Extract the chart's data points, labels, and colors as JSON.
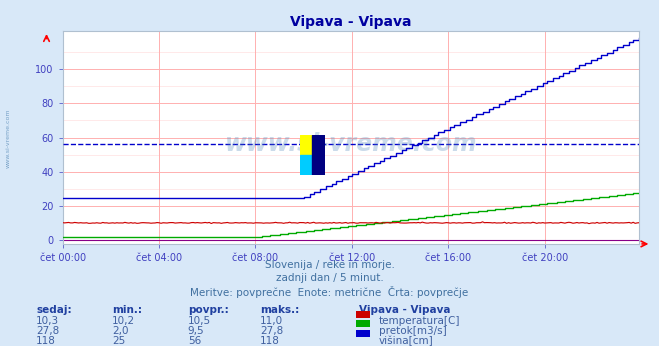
{
  "title": "Vipava - Vipava",
  "bg_color": "#d8e8f8",
  "plot_bg_color": "#ffffff",
  "grid_color": "#ffb0b0",
  "grid_minor_color": "#ffe0e0",
  "tick_color": "#4040c0",
  "title_color": "#0000a0",
  "watermark": "www.si-vreme.com",
  "subtitle_lines": [
    "Slovenija / reke in morje.",
    "zadnji dan / 5 minut.",
    "Meritve: povprečne  Enote: metrične  Črta: povprečje"
  ],
  "legend_title": "Vipava - Vipava",
  "legend_items": [
    {
      "label": "temperatura[C]",
      "color": "#cc0000"
    },
    {
      "label": "pretok[m3/s]",
      "color": "#00aa00"
    },
    {
      "label": "višina[cm]",
      "color": "#0000cc"
    }
  ],
  "table_headers": [
    "sedaj:",
    "min.:",
    "povpr.:",
    "maks.:"
  ],
  "table_rows": [
    [
      "10,3",
      "10,2",
      "10,5",
      "11,0"
    ],
    [
      "27,8",
      "2,0",
      "9,5",
      "27,8"
    ],
    [
      "118",
      "25",
      "56",
      "118"
    ]
  ],
  "xlim": [
    0,
    287
  ],
  "ylim": [
    -2,
    122
  ],
  "yticks": [
    0,
    20,
    40,
    60,
    80,
    100
  ],
  "xtick_positions": [
    0,
    48,
    96,
    144,
    192,
    240
  ],
  "xtick_labels": [
    "čet 00:00",
    "čet 04:00",
    "čet 08:00",
    "čet 12:00",
    "čet 16:00",
    "čet 20:00"
  ],
  "avg_line_value": 56,
  "avg_line_color": "#0000cc",
  "temp_color": "#cc0000",
  "flow_color": "#00aa00",
  "height_color": "#0000cc",
  "purple_color": "#880088",
  "num_points": 288
}
